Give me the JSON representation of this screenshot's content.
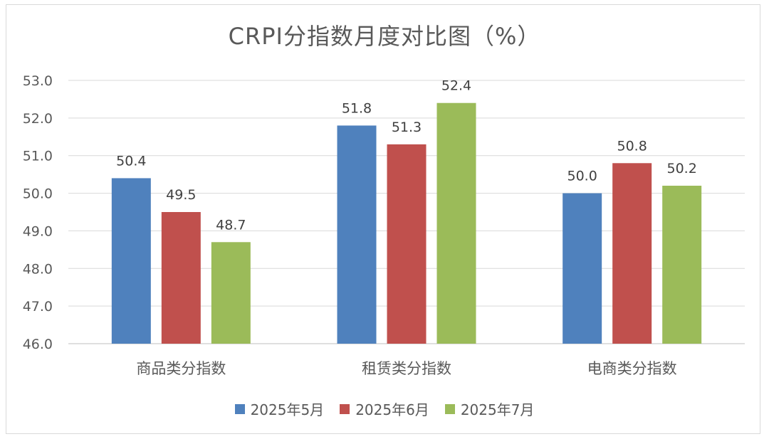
{
  "chart_data": {
    "type": "bar",
    "title": "CRPI分指数月度对比图（%）",
    "categories": [
      "商品类分指数",
      "租赁类分指数",
      "电商类分指数"
    ],
    "series": [
      {
        "name": "2025年5月",
        "color": "#4f81bd",
        "values": [
          50.4,
          51.8,
          50.0
        ]
      },
      {
        "name": "2025年6月",
        "color": "#c0504d",
        "values": [
          49.5,
          51.3,
          50.8
        ]
      },
      {
        "name": "2025年7月",
        "color": "#9bbb59",
        "values": [
          48.7,
          52.4,
          50.2
        ]
      }
    ],
    "ylim": [
      46.0,
      53.0
    ],
    "yticks": [
      "46.0",
      "47.0",
      "48.0",
      "49.0",
      "50.0",
      "51.0",
      "52.0",
      "53.0"
    ],
    "grid": true,
    "legend_position": "bottom"
  }
}
